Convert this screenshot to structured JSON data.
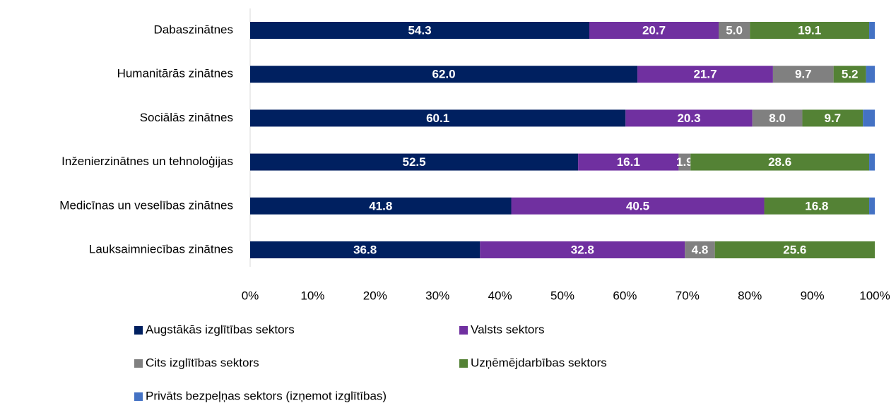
{
  "chart_data": {
    "type": "stacked-bar-horizontal",
    "categories": [
      "Dabaszinātnes",
      "Humanitārās zinātnes",
      "Sociālās zinātnes",
      "Inženierzinātnes un tehnoloģijas",
      "Medicīnas un veselības zinātnes",
      "Lauksaimniecības zinātnes"
    ],
    "series": [
      {
        "name": "Augstākās izglītības sektors",
        "color": "#002060",
        "values": [
          54.3,
          62.0,
          60.1,
          52.5,
          41.8,
          36.8
        ],
        "value_labels": [
          "54.3",
          "62.0",
          "60.1",
          "52.5",
          "41.8",
          "36.8"
        ]
      },
      {
        "name": "Valsts sektors",
        "color": "#7030a0",
        "values": [
          20.7,
          21.7,
          20.3,
          16.1,
          40.5,
          32.8
        ],
        "value_labels": [
          "20.7",
          "21.7",
          "20.3",
          "16.1",
          "40.5",
          "32.8"
        ]
      },
      {
        "name": "Cits izglītības sektors",
        "color": "#808080",
        "values": [
          5.0,
          9.7,
          8.0,
          1.9,
          null,
          4.8
        ],
        "value_labels": [
          "5.0",
          "9.7",
          "8.0",
          "1.9",
          null,
          "4.8"
        ]
      },
      {
        "name": "Uzņēmējdarbības sektors",
        "color": "#548235",
        "values": [
          19.1,
          5.2,
          9.7,
          28.6,
          16.8,
          25.6
        ],
        "value_labels": [
          "19.1",
          "5.2",
          "9.7",
          "28.6",
          "16.8",
          "25.6"
        ]
      },
      {
        "name": "Privāts bezpeļņas sektors (izņemot izglītības)",
        "color": "#4472c4",
        "values": [
          0.9,
          1.4,
          1.9,
          0.9,
          0.9,
          null
        ]
      }
    ],
    "xlim": [
      0,
      100
    ],
    "xticks": [
      {
        "value": 0,
        "label": "0%"
      },
      {
        "value": 10,
        "label": "10%"
      },
      {
        "value": 20,
        "label": "20%"
      },
      {
        "value": 30,
        "label": "30%"
      },
      {
        "value": 40,
        "label": "40%"
      },
      {
        "value": 50,
        "label": "50%"
      },
      {
        "value": 60,
        "label": "60%"
      },
      {
        "value": 70,
        "label": "70%"
      },
      {
        "value": 80,
        "label": "80%"
      },
      {
        "value": 90,
        "label": "90%"
      },
      {
        "value": 100,
        "label": "100%"
      }
    ]
  }
}
